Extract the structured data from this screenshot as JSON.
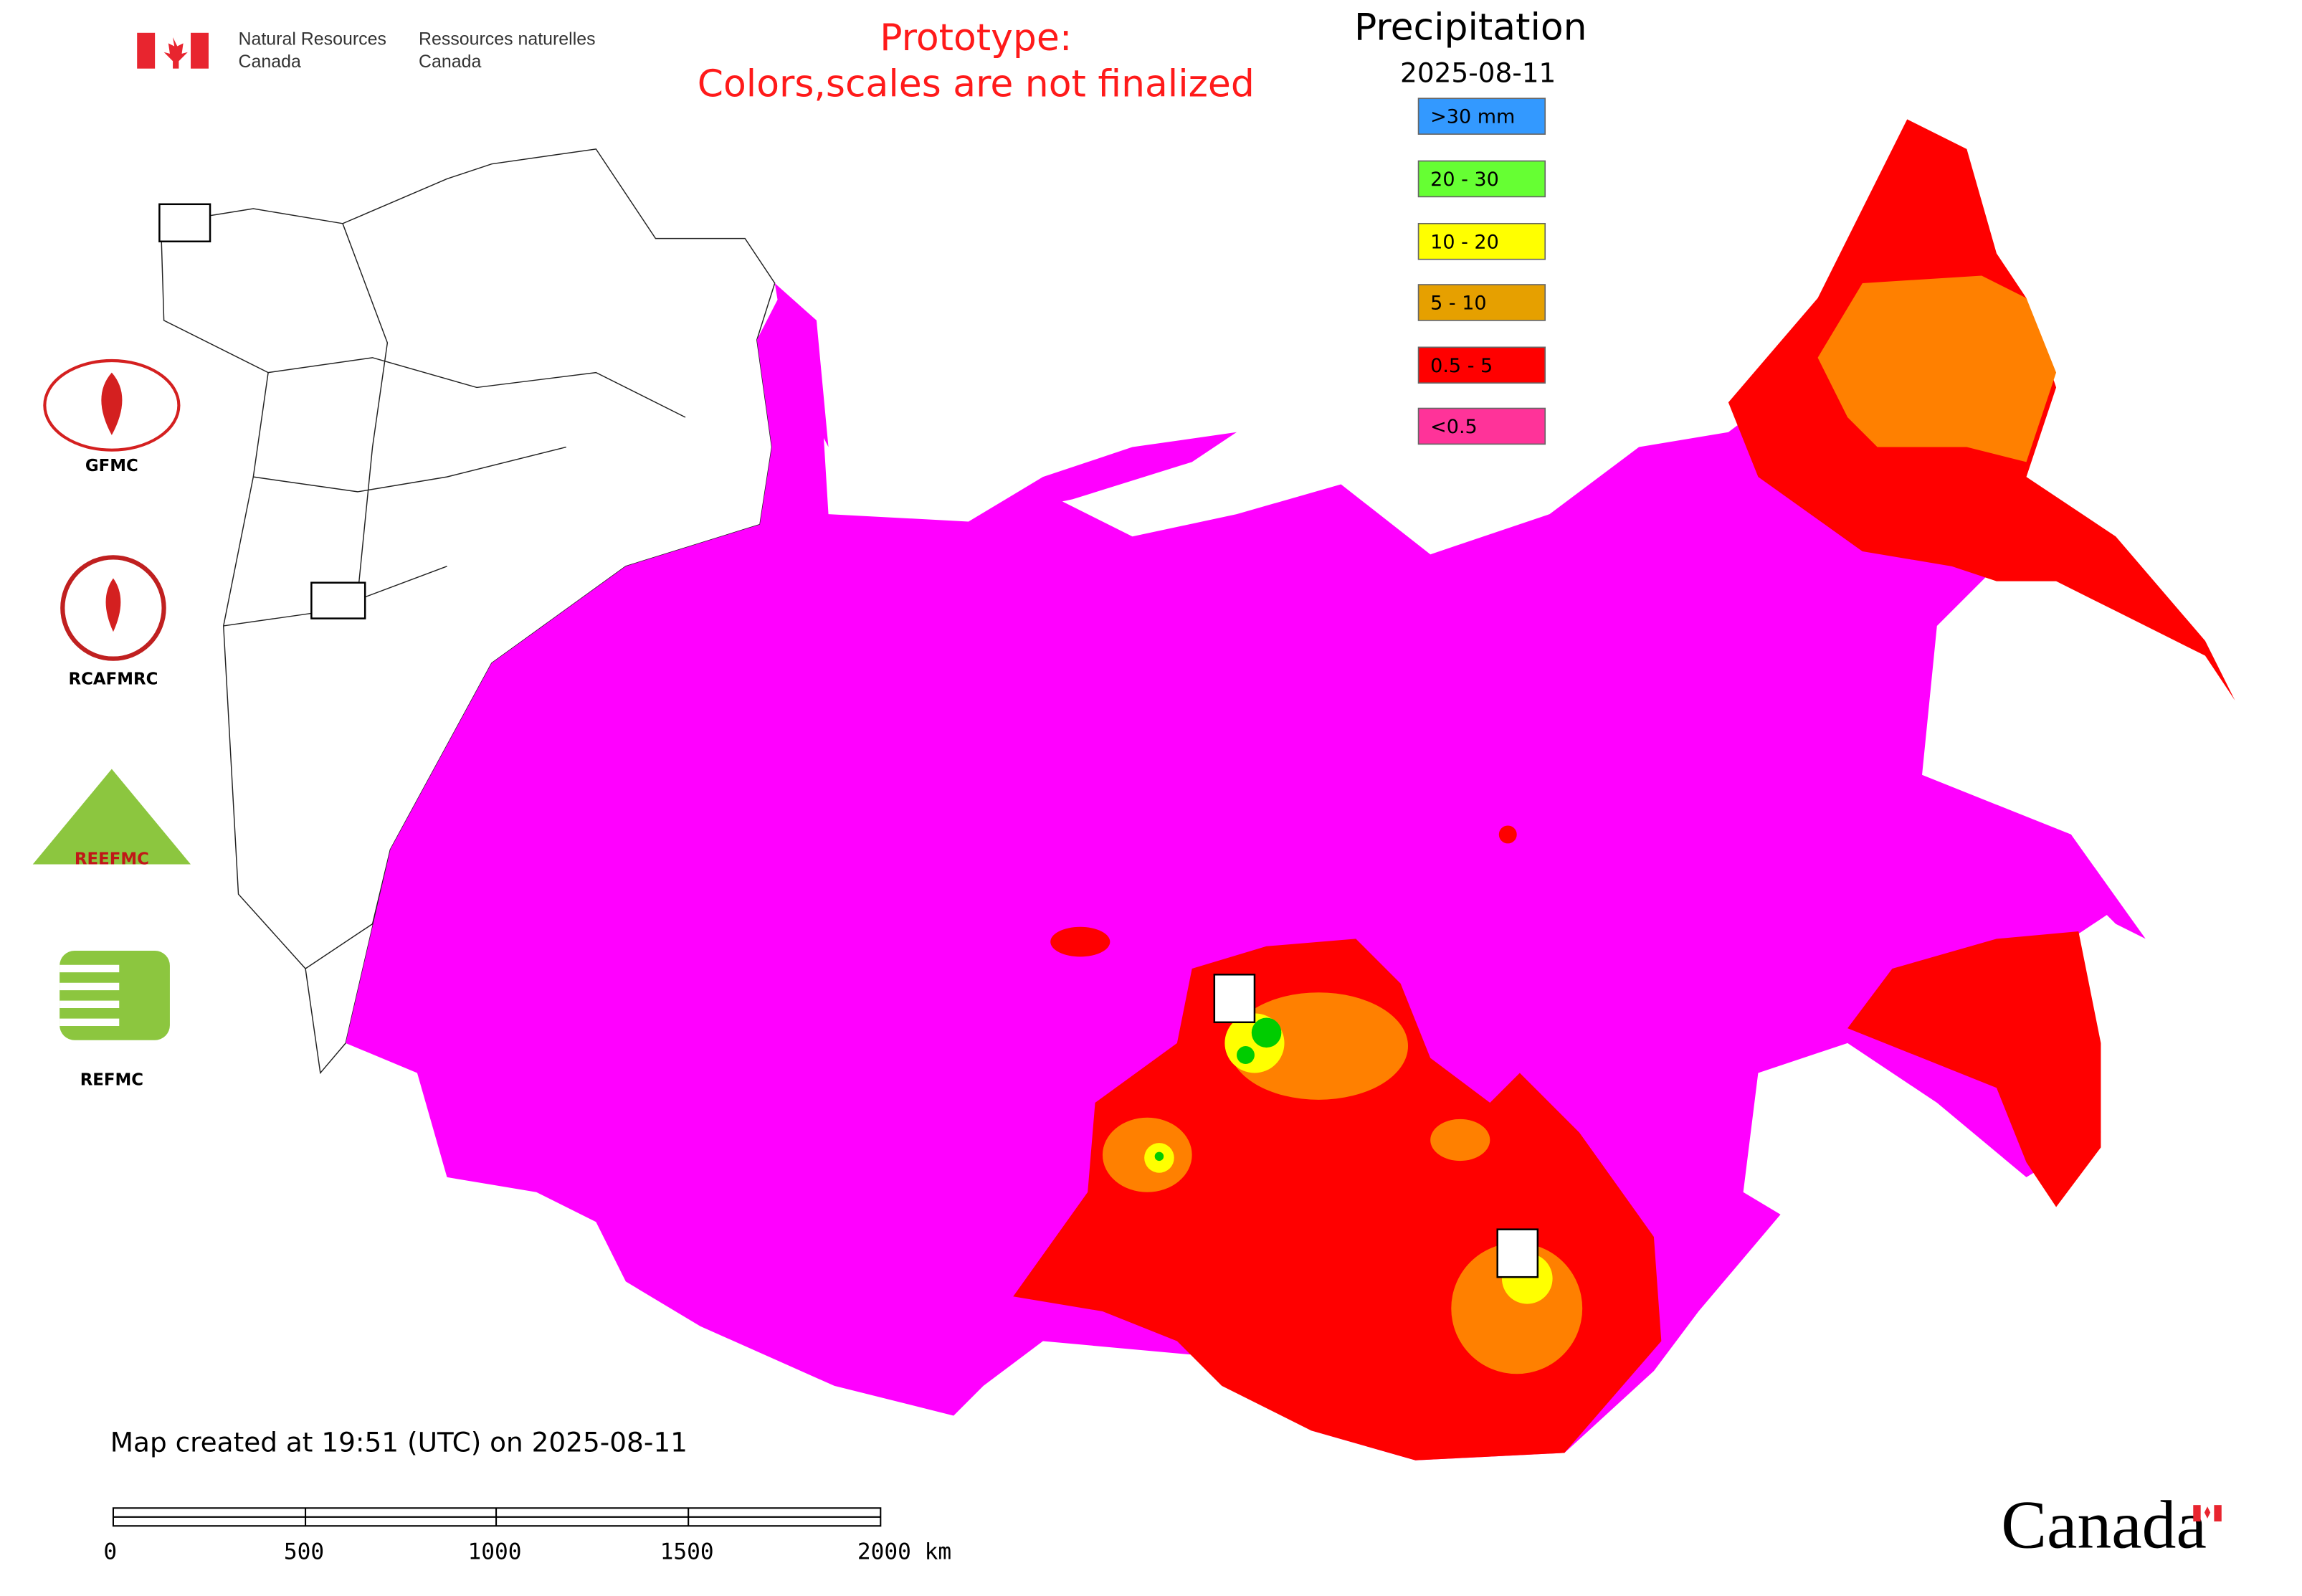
{
  "header": {
    "org_en": [
      "Natural Resources",
      "Canada"
    ],
    "org_fr": [
      "Ressources naturelles",
      "Canada"
    ],
    "notice": [
      "Prototype:",
      "Colors,scales are not finalized"
    ]
  },
  "legend": {
    "title": "Precipitation",
    "date": "2025-08-11",
    "items": [
      {
        "label": ">30 mm",
        "color": "#3399ff"
      },
      {
        "label": "20 - 30",
        "color": "#66ff33"
      },
      {
        "label": "10 - 20",
        "color": "#ffff00"
      },
      {
        "label": "5 - 10",
        "color": "#e6a000"
      },
      {
        "label": "0.5 - 5",
        "color": "#ff0000"
      },
      {
        "label": "<0.5",
        "color": "#ff3399"
      }
    ]
  },
  "logos": [
    "GFMC",
    "RCAFMRC",
    "REEFMC",
    "REFMC"
  ],
  "footer": {
    "map_created": "Map created at 19:51 (UTC) on 2025-08-11",
    "wordmark": "Canada"
  },
  "scale_bar": {
    "labels": [
      "0",
      "500",
      "1000",
      "1500",
      "2000 km"
    ]
  }
}
